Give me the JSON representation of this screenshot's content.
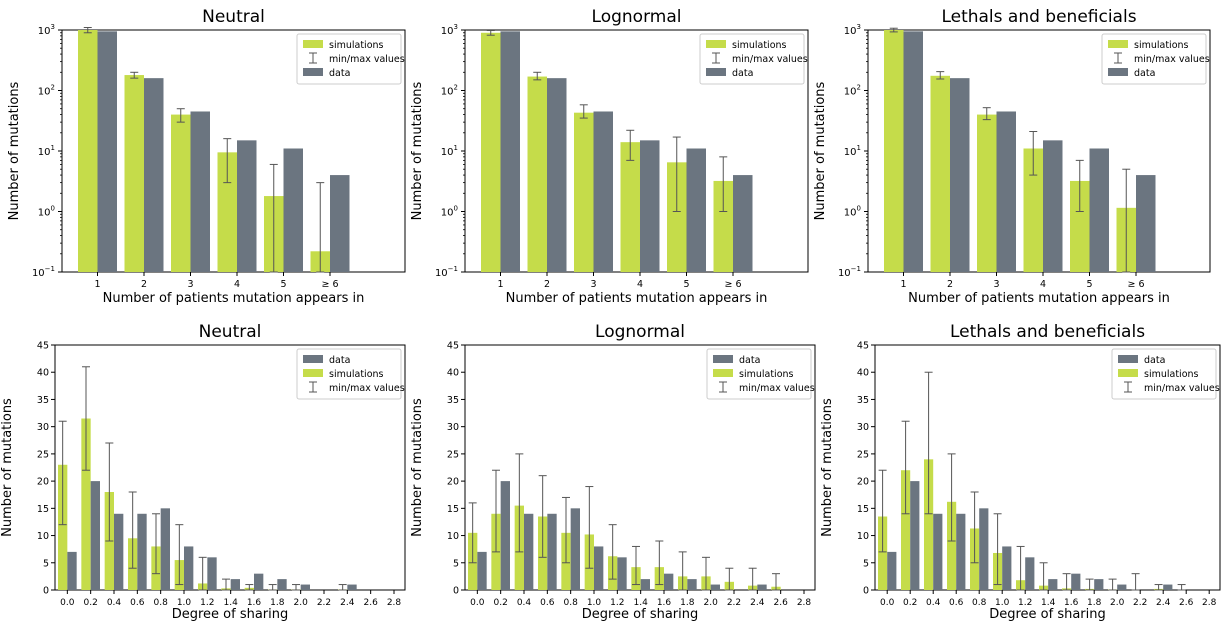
{
  "colors": {
    "simulations": "#c5dc4a",
    "data": "#6b7580",
    "errorbar": "#555555"
  },
  "chart_data": [
    {
      "type": "bar",
      "scale": "log",
      "legend_order": [
        "simulations",
        "min/max values",
        "data"
      ],
      "legend": "top-right",
      "title": "Neutral",
      "xlabel": "Number of patients mutation appears in",
      "ylabel": "Number of mutations",
      "categories": [
        "1",
        "2",
        "3",
        "4",
        "5",
        "≥ 6"
      ],
      "ylim": [
        0.1,
        1000
      ],
      "yticks": [
        {
          "v": 0.1,
          "base": "10",
          "exp": "−1"
        },
        {
          "v": 1,
          "base": "10",
          "exp": "0"
        },
        {
          "v": 10,
          "base": "10",
          "exp": "1"
        },
        {
          "v": 100,
          "base": "10",
          "exp": "2"
        },
        {
          "v": 1000,
          "base": "10",
          "exp": "3"
        }
      ],
      "series": [
        {
          "name": "simulations",
          "values": [
            1000,
            180,
            40,
            9.5,
            1.8,
            0.22
          ],
          "err_min": [
            900,
            160,
            30,
            3,
            0.1,
            0.1
          ],
          "err_max": [
            1100,
            200,
            50,
            16,
            6,
            3
          ]
        },
        {
          "name": "data",
          "values": [
            950,
            160,
            45,
            15,
            11,
            4
          ]
        }
      ],
      "legend_labels": {
        "simulations": "simulations",
        "errorbar": "min/max values",
        "data": "data"
      }
    },
    {
      "type": "bar",
      "scale": "log",
      "legend_order": [
        "simulations",
        "min/max values",
        "data"
      ],
      "legend": "top-right",
      "title": "Lognormal",
      "xlabel": "Number of patients mutation appears in",
      "ylabel": "Number of mutations",
      "categories": [
        "1",
        "2",
        "3",
        "4",
        "5",
        "≥ 6"
      ],
      "ylim": [
        0.1,
        1000
      ],
      "yticks": [
        {
          "v": 0.1,
          "base": "10",
          "exp": "−1"
        },
        {
          "v": 1,
          "base": "10",
          "exp": "0"
        },
        {
          "v": 10,
          "base": "10",
          "exp": "1"
        },
        {
          "v": 100,
          "base": "10",
          "exp": "2"
        },
        {
          "v": 1000,
          "base": "10",
          "exp": "3"
        }
      ],
      "series": [
        {
          "name": "simulations",
          "values": [
            900,
            170,
            43,
            14,
            6.5,
            3.2
          ],
          "err_min": [
            820,
            150,
            35,
            7,
            1,
            1
          ],
          "err_max": [
            980,
            200,
            58,
            22,
            17,
            8
          ]
        },
        {
          "name": "data",
          "values": [
            950,
            160,
            45,
            15,
            11,
            4
          ]
        }
      ],
      "legend_labels": {
        "simulations": "simulations",
        "errorbar": "min/max values",
        "data": "data"
      }
    },
    {
      "type": "bar",
      "scale": "log",
      "legend_order": [
        "simulations",
        "min/max values",
        "data"
      ],
      "legend": "top-right",
      "title": "Lethals and beneficials",
      "xlabel": "Number of patients mutation appears in",
      "ylabel": "Number of mutations",
      "categories": [
        "1",
        "2",
        "3",
        "4",
        "5",
        "≥ 6"
      ],
      "ylim": [
        0.1,
        1000
      ],
      "yticks": [
        {
          "v": 0.1,
          "base": "10",
          "exp": "−1"
        },
        {
          "v": 1,
          "base": "10",
          "exp": "0"
        },
        {
          "v": 10,
          "base": "10",
          "exp": "1"
        },
        {
          "v": 100,
          "base": "10",
          "exp": "2"
        },
        {
          "v": 1000,
          "base": "10",
          "exp": "3"
        }
      ],
      "series": [
        {
          "name": "simulations",
          "values": [
            1000,
            175,
            40,
            11,
            3.2,
            1.15
          ],
          "err_min": [
            930,
            155,
            33,
            4,
            1,
            0.1
          ],
          "err_max": [
            1070,
            205,
            52,
            21,
            7,
            5
          ]
        },
        {
          "name": "data",
          "values": [
            950,
            160,
            45,
            15,
            11,
            4
          ]
        }
      ],
      "legend_labels": {
        "simulations": "simulations",
        "errorbar": "min/max values",
        "data": "data"
      }
    },
    {
      "type": "bar",
      "scale": "linear",
      "legend_order": [
        "data",
        "simulations",
        "min/max values"
      ],
      "legend": "top-right",
      "title": "Neutral",
      "xlabel": "Degree of sharing",
      "ylabel": "Number of mutations",
      "categories": [
        "0.0",
        "0.2",
        "0.4",
        "0.6",
        "0.8",
        "1.0",
        "1.2",
        "1.4",
        "1.6",
        "1.8",
        "2.0",
        "2.2",
        "2.4",
        "2.6",
        "2.8"
      ],
      "ylim": [
        0,
        45
      ],
      "yticks": [
        0,
        5,
        10,
        15,
        20,
        25,
        30,
        35,
        40,
        45
      ],
      "series": [
        {
          "name": "simulations",
          "values": [
            23,
            31.5,
            18,
            9.5,
            8,
            5.5,
            1.2,
            0.3,
            0.4,
            0.1,
            0.1,
            0,
            0.1,
            0,
            0
          ],
          "err_min": [
            12,
            22,
            9,
            4,
            3,
            1,
            0,
            0,
            0,
            0,
            0,
            0,
            0,
            0,
            0
          ],
          "err_max": [
            31,
            41,
            27,
            18,
            14,
            12,
            6,
            2,
            1,
            1,
            1,
            0,
            1,
            0,
            0
          ]
        },
        {
          "name": "data",
          "values": [
            7,
            20,
            14,
            14,
            15,
            8,
            6,
            2,
            3,
            2,
            1,
            0,
            1,
            0,
            0
          ]
        }
      ],
      "legend_labels": {
        "simulations": "simulations",
        "errorbar": "min/max values",
        "data": "data"
      }
    },
    {
      "type": "bar",
      "scale": "linear",
      "legend_order": [
        "data",
        "simulations",
        "min/max values"
      ],
      "legend": "top-right",
      "title": "Lognormal",
      "xlabel": "Degree of sharing",
      "ylabel": "Number of mutations",
      "categories": [
        "0.0",
        "0.2",
        "0.4",
        "0.6",
        "0.8",
        "1.0",
        "1.2",
        "1.4",
        "1.6",
        "1.8",
        "2.0",
        "2.2",
        "2.4",
        "2.6",
        "2.8"
      ],
      "ylim": [
        0,
        45
      ],
      "yticks": [
        0,
        5,
        10,
        15,
        20,
        25,
        30,
        35,
        40,
        45
      ],
      "series": [
        {
          "name": "simulations",
          "values": [
            10.5,
            14,
            15.5,
            13.5,
            10.5,
            10.2,
            6.2,
            4.2,
            4.2,
            2.5,
            2.5,
            1.5,
            0.8,
            0.6,
            0
          ],
          "err_min": [
            5,
            7,
            7,
            6,
            5,
            4,
            2,
            1,
            1,
            0,
            0,
            0,
            0,
            0,
            0
          ],
          "err_max": [
            16,
            22,
            25,
            21,
            17,
            19,
            12,
            8,
            9,
            7,
            6,
            4,
            4,
            3,
            0
          ]
        },
        {
          "name": "data",
          "values": [
            7,
            20,
            14,
            14,
            15,
            8,
            6,
            2,
            3,
            2,
            1,
            0,
            1,
            0,
            0
          ]
        }
      ],
      "legend_labels": {
        "simulations": "simulations",
        "errorbar": "min/max values",
        "data": "data"
      }
    },
    {
      "type": "bar",
      "scale": "linear",
      "legend_order": [
        "data",
        "simulations",
        "min/max values"
      ],
      "legend": "top-right",
      "title": "Lethals and beneficials",
      "xlabel": "Degree of sharing",
      "ylabel": "Number of mutations",
      "categories": [
        "0.0",
        "0.2",
        "0.4",
        "0.6",
        "0.8",
        "1.0",
        "1.2",
        "1.4",
        "1.6",
        "1.8",
        "2.0",
        "2.2",
        "2.4",
        "2.6",
        "2.8"
      ],
      "ylim": [
        0,
        45
      ],
      "yticks": [
        0,
        5,
        10,
        15,
        20,
        25,
        30,
        35,
        40,
        45
      ],
      "series": [
        {
          "name": "simulations",
          "values": [
            13.5,
            22,
            24,
            16.2,
            11.3,
            6.8,
            1.8,
            0.8,
            0.3,
            0.2,
            0.1,
            0,
            0.2,
            0,
            0
          ],
          "err_min": [
            7,
            14,
            14,
            9,
            5,
            1,
            0,
            0,
            0,
            0,
            0,
            0,
            0,
            0,
            0
          ],
          "err_max": [
            22,
            31,
            40,
            25,
            18,
            14,
            8,
            5,
            3,
            2,
            2,
            3,
            1,
            1,
            0
          ]
        },
        {
          "name": "data",
          "values": [
            7,
            20,
            14,
            14,
            15,
            8,
            6,
            2,
            3,
            2,
            1,
            0,
            1,
            0,
            0
          ]
        }
      ],
      "legend_labels": {
        "simulations": "simulations",
        "errorbar": "min/max values",
        "data": "data"
      }
    }
  ]
}
